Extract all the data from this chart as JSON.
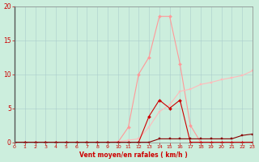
{
  "background_color": "#cceedd",
  "grid_color": "#aacccc",
  "xlabel": "Vent moyen/en rafales ( km/h )",
  "x_values": [
    0,
    1,
    2,
    3,
    4,
    5,
    6,
    7,
    8,
    9,
    10,
    11,
    12,
    13,
    14,
    15,
    16,
    17,
    18,
    19,
    20,
    21,
    22,
    23
  ],
  "freq_rafales": [
    0,
    0,
    0,
    0,
    0,
    0,
    0,
    0,
    0,
    0,
    0,
    2.2,
    10.0,
    12.5,
    18.5,
    18.5,
    11.5,
    2.5,
    0,
    0,
    0,
    0,
    0,
    0
  ],
  "freq_moyen": [
    0,
    0,
    0,
    0,
    0,
    0,
    0,
    0,
    0,
    0,
    0,
    0,
    0,
    3.8,
    6.2,
    5.0,
    6.2,
    0,
    0,
    0,
    0,
    0,
    0,
    0
  ],
  "cumul_rafales": [
    0,
    0,
    0,
    0,
    0,
    0,
    0,
    0,
    0,
    0,
    0.1,
    0.3,
    0.5,
    2.2,
    4.5,
    5.5,
    7.5,
    7.8,
    8.5,
    8.8,
    9.2,
    9.5,
    9.8,
    10.5
  ],
  "cumul_moyen": [
    0,
    0,
    0,
    0,
    0,
    0,
    0,
    0,
    0,
    0,
    0,
    0,
    0,
    0,
    0.5,
    0.5,
    0.5,
    0.5,
    0.5,
    0.5,
    0.5,
    0.5,
    1.0,
    1.2
  ],
  "color_freq_rafales": "#ff9999",
  "color_cumul_rafales": "#ffbbbb",
  "color_freq_moyen": "#cc0000",
  "color_cumul_moyen": "#880000",
  "ylim": [
    0,
    20
  ],
  "xlim": [
    0,
    23
  ],
  "yticks": [
    0,
    5,
    10,
    15,
    20
  ],
  "xticks": [
    0,
    1,
    2,
    3,
    4,
    5,
    6,
    7,
    8,
    9,
    10,
    11,
    12,
    13,
    14,
    15,
    16,
    17,
    18,
    19,
    20,
    21,
    22,
    23
  ],
  "tick_color": "#cc0000",
  "label_color": "#cc0000",
  "xlabel_fontsize": 5.5,
  "tick_fontsize_x": 4.5,
  "tick_fontsize_y": 5.5
}
